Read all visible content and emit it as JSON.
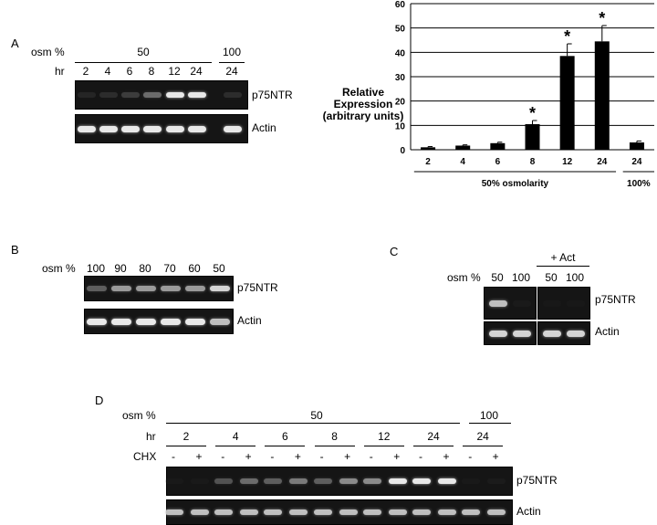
{
  "panelA": {
    "letter": "A",
    "osm_label": "osm %",
    "hr_label": "hr",
    "osm_groups": [
      "50",
      "100"
    ],
    "hours": [
      "2",
      "4",
      "6",
      "8",
      "12",
      "24",
      "24"
    ],
    "bands": [
      "p75NTR",
      "Actin"
    ],
    "intensity_p75": [
      0.25,
      0.3,
      0.4,
      0.6,
      0.95,
      0.95,
      0.3
    ],
    "intensity_actin": [
      0.95,
      0.95,
      0.95,
      0.95,
      0.95,
      0.95,
      0.95
    ]
  },
  "panelA_chart": {
    "ylabel_lines": [
      "Relative",
      "Expression",
      "(arbitrary units)"
    ],
    "group_labels": [
      "50% osmolarity",
      "100%"
    ]
  },
  "chart_data": {
    "type": "bar",
    "categories": [
      "2",
      "4",
      "6",
      "8",
      "12",
      "24",
      "24"
    ],
    "values": [
      1,
      1.7,
      2.7,
      10.5,
      38.5,
      44.5,
      3
    ],
    "errors": [
      0.3,
      0.3,
      0.4,
      1.5,
      5,
      6.5,
      0.6
    ],
    "significant": [
      false,
      false,
      false,
      true,
      true,
      true,
      false
    ],
    "significance_marker": "*",
    "ylim": [
      0,
      60
    ],
    "yticks": [
      "0",
      "10",
      "20",
      "30",
      "40",
      "50",
      "60"
    ],
    "grid": true
  },
  "panelB": {
    "letter": "B",
    "osm_label": "osm %",
    "lanes": [
      "100",
      "90",
      "80",
      "70",
      "60",
      "50"
    ],
    "bands": [
      "p75NTR",
      "Actin"
    ],
    "intensity_p75": [
      0.55,
      0.75,
      0.75,
      0.75,
      0.75,
      0.9
    ],
    "intensity_actin": [
      0.95,
      0.95,
      0.95,
      0.95,
      0.95,
      0.85
    ]
  },
  "panelC": {
    "letter": "C",
    "osm_label": "osm %",
    "treatment": "+ Act",
    "lanes": [
      "50",
      "100",
      "50",
      "100"
    ],
    "bands": [
      "p75NTR",
      "Actin"
    ],
    "intensity_p75": [
      0.85,
      0.12,
      0.05,
      0.05
    ],
    "intensity_actin": [
      0.9,
      0.9,
      0.9,
      0.9
    ]
  },
  "panelD": {
    "letter": "D",
    "osm_label": "osm %",
    "hr_label": "hr",
    "cx_label": "CHX",
    "osm_groups": [
      "50",
      "100"
    ],
    "hours": [
      "2",
      "4",
      "6",
      "8",
      "12",
      "24",
      "24"
    ],
    "signs": [
      "-",
      "+"
    ],
    "bands": [
      "p75NTR",
      "Actin"
    ],
    "intensity_p75": [
      0.1,
      0.1,
      0.5,
      0.6,
      0.55,
      0.65,
      0.55,
      0.7,
      0.7,
      0.95,
      0.95,
      0.95,
      0.1,
      0.15
    ],
    "intensity_actin": [
      0.85,
      0.85,
      0.85,
      0.85,
      0.85,
      0.85,
      0.85,
      0.85,
      0.85,
      0.85,
      0.85,
      0.85,
      0.85,
      0.85
    ]
  }
}
